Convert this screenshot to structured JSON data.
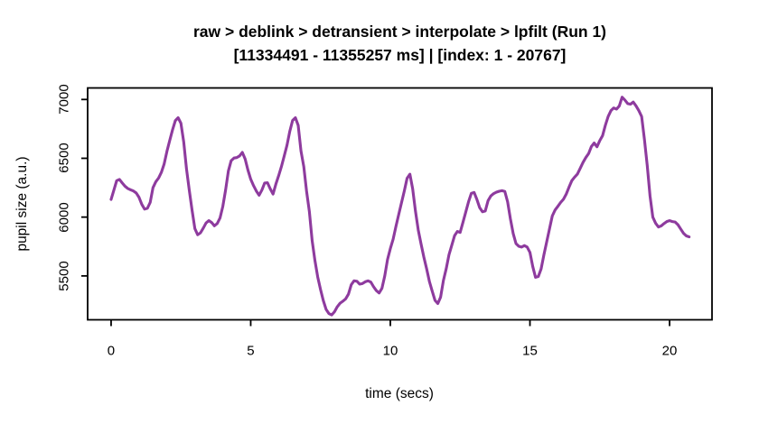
{
  "header": {
    "title": "raw > deblink > detransient > interpolate > lpfilt (Run 1)",
    "subtitle": "[11334491 - 11355257 ms] | [index: 1 - 20767]"
  },
  "chart_data": {
    "type": "line",
    "title": "raw > deblink > detransient > interpolate > lpfilt (Run 1)",
    "subtitle": "[11334491 - 11355257 ms] | [index: 1 - 20767]",
    "xlabel": "time (secs)",
    "ylabel": "pupil size (a.u.)",
    "x_ticks": [
      0,
      5,
      10,
      15,
      20
    ],
    "y_ticks": [
      5500,
      6000,
      6500,
      7000
    ],
    "xlim": [
      -0.84,
      21.52
    ],
    "ylim": [
      5127,
      7098
    ],
    "grid": false,
    "legend": "none",
    "line_color": "#8E3B9E",
    "frame_color": "#000000",
    "series": [
      {
        "name": "pupil size (a.u.)",
        "t_start": 0,
        "t_step": 0.1,
        "values": [
          6150,
          6230,
          6310,
          6320,
          6290,
          6262,
          6243,
          6232,
          6222,
          6205,
          6168,
          6108,
          6068,
          6075,
          6125,
          6250,
          6300,
          6332,
          6380,
          6452,
          6560,
          6652,
          6742,
          6820,
          6845,
          6798,
          6640,
          6410,
          6228,
          6058,
          5902,
          5850,
          5866,
          5906,
          5950,
          5970,
          5954,
          5926,
          5945,
          5992,
          6090,
          6230,
          6392,
          6480,
          6502,
          6506,
          6520,
          6550,
          6494,
          6400,
          6322,
          6268,
          6222,
          6186,
          6230,
          6290,
          6292,
          6240,
          6196,
          6280,
          6352,
          6430,
          6520,
          6612,
          6730,
          6822,
          6845,
          6780,
          6562,
          6430,
          6220,
          6048,
          5800,
          5630,
          5490,
          5385,
          5290,
          5215,
          5180,
          5168,
          5195,
          5238,
          5268,
          5285,
          5305,
          5345,
          5425,
          5458,
          5455,
          5430,
          5435,
          5450,
          5458,
          5448,
          5408,
          5375,
          5355,
          5395,
          5500,
          5640,
          5732,
          5812,
          5920,
          6022,
          6122,
          6222,
          6330,
          6365,
          6240,
          6050,
          5890,
          5772,
          5660,
          5560,
          5452,
          5370,
          5292,
          5265,
          5320,
          5460,
          5560,
          5680,
          5760,
          5842,
          5878,
          5870,
          5955,
          6042,
          6130,
          6202,
          6210,
          6150,
          6080,
          6045,
          6052,
          6140,
          6180,
          6200,
          6212,
          6220,
          6225,
          6218,
          6130,
          5985,
          5860,
          5775,
          5752,
          5745,
          5758,
          5745,
          5700,
          5580,
          5488,
          5495,
          5560,
          5680,
          5790,
          5900,
          6010,
          6060,
          6092,
          6125,
          6152,
          6196,
          6255,
          6310,
          6340,
          6366,
          6415,
          6465,
          6506,
          6540,
          6600,
          6630,
          6598,
          6650,
          6692,
          6780,
          6855,
          6905,
          6928,
          6918,
          6945,
          7020,
          6995,
          6965,
          6960,
          6978,
          6945,
          6905,
          6855,
          6660,
          6440,
          6180,
          6000,
          5948,
          5916,
          5925,
          5945,
          5962,
          5970,
          5962,
          5958,
          5935,
          5898,
          5862,
          5840,
          5832
        ]
      }
    ]
  }
}
